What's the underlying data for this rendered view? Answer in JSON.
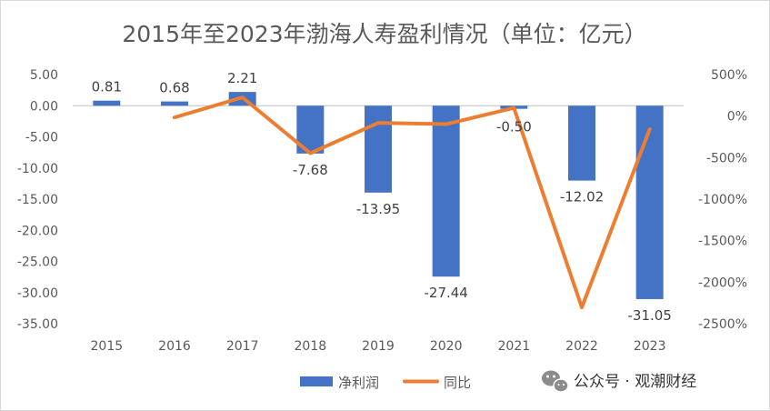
{
  "chart_data": {
    "type": "bar",
    "title": "2015年至2023年渤海人寿盈利情况（单位：亿元）",
    "categories": [
      "2015",
      "2016",
      "2017",
      "2018",
      "2019",
      "2020",
      "2021",
      "2022",
      "2023"
    ],
    "series": [
      {
        "name": "净利润",
        "type": "bar",
        "axis": "left",
        "color": "#4472C4",
        "values": [
          0.81,
          0.68,
          2.21,
          -7.68,
          -13.95,
          -27.44,
          -0.5,
          -12.02,
          -31.05
        ],
        "labels": [
          "0.81",
          "0.68",
          "2.21",
          "-7.68",
          "-13.95",
          "-27.44",
          "-0.50",
          "-12.02",
          "-31.05"
        ]
      },
      {
        "name": "同比",
        "type": "line",
        "axis": "right",
        "color": "#ED7D31",
        "values": [
          null,
          -16,
          225,
          -447,
          -82,
          -97,
          98,
          -2304,
          -158
        ]
      }
    ],
    "left_axis": {
      "ylim": [
        -35,
        5
      ],
      "ticks": [
        5,
        0,
        -5,
        -10,
        -15,
        -20,
        -25,
        -30,
        -35
      ],
      "tick_labels": [
        "5.00",
        "0.00",
        "-5.00",
        "-10.00",
        "-15.00",
        "-20.00",
        "-25.00",
        "-30.00",
        "-35.00"
      ]
    },
    "right_axis": {
      "ylim": [
        -2500,
        500
      ],
      "ticks": [
        500,
        0,
        -500,
        -1000,
        -1500,
        -2000,
        -2500
      ],
      "tick_labels": [
        "500%",
        "0%",
        "-500%",
        "-1000%",
        "-1500%",
        "-2000%",
        "-2500%"
      ]
    },
    "legend": {
      "position": "bottom",
      "items": [
        {
          "label": "净利润",
          "color": "#4472C4",
          "kind": "bar"
        },
        {
          "label": "同比",
          "color": "#ED7D31",
          "kind": "line"
        }
      ]
    }
  },
  "watermark": {
    "icon": "wechat-icon",
    "text": "公众号 · 观潮财经"
  }
}
